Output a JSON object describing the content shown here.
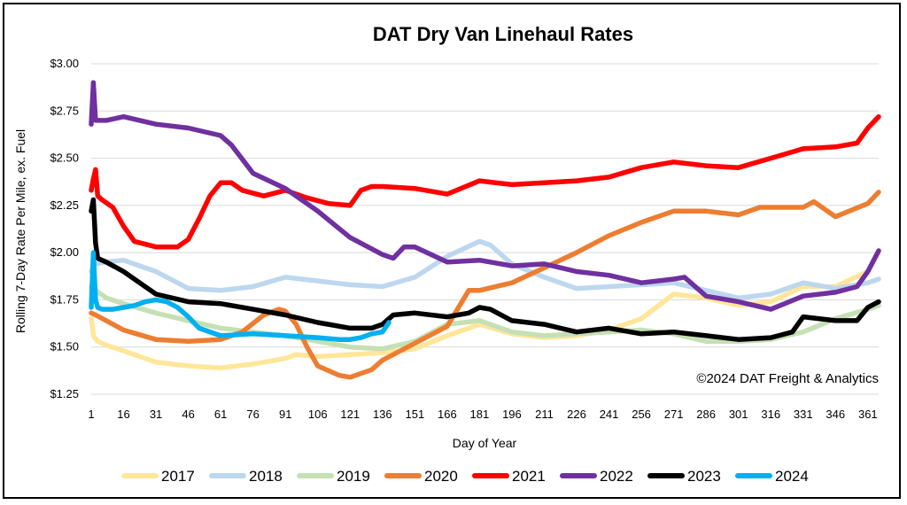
{
  "chart_data": {
    "type": "line",
    "title": "DAT Dry Van Linehaul Rates",
    "xlabel": "Day of Year",
    "ylabel": "Rolling 7-Day Rate Per Mile, ex. Fuel",
    "annotation": "©2024 DAT Freight & Analytics",
    "ylim": [
      1.25,
      3.0
    ],
    "xlim": [
      1,
      366
    ],
    "grid": "horizontal",
    "legend_position": "bottom",
    "y_ticks": [
      "$1.25",
      "$1.50",
      "$1.75",
      "$2.00",
      "$2.25",
      "$2.50",
      "$2.75",
      "$3.00"
    ],
    "y_tick_values": [
      1.25,
      1.5,
      1.75,
      2.0,
      2.25,
      2.5,
      2.75,
      3.0
    ],
    "x_ticks": [
      "1",
      "16",
      "31",
      "46",
      "61",
      "76",
      "91",
      "106",
      "121",
      "136",
      "151",
      "166",
      "181",
      "196",
      "211",
      "226",
      "241",
      "256",
      "271",
      "286",
      "301",
      "316",
      "331",
      "346",
      "361"
    ],
    "x_tick_values": [
      1,
      16,
      31,
      46,
      61,
      76,
      91,
      106,
      121,
      136,
      151,
      166,
      181,
      196,
      211,
      226,
      241,
      256,
      271,
      286,
      301,
      316,
      331,
      346,
      361
    ],
    "series": [
      {
        "name": "2017",
        "color": "#ffe699",
        "x": [
          1,
          2,
          4,
          8,
          16,
          31,
          46,
          61,
          76,
          91,
          96,
          106,
          121,
          136,
          151,
          166,
          181,
          196,
          211,
          226,
          241,
          256,
          271,
          286,
          301,
          316,
          331,
          346,
          361,
          366
        ],
        "y": [
          1.65,
          1.56,
          1.53,
          1.51,
          1.48,
          1.42,
          1.4,
          1.39,
          1.41,
          1.44,
          1.46,
          1.45,
          1.46,
          1.47,
          1.49,
          1.56,
          1.62,
          1.57,
          1.55,
          1.56,
          1.59,
          1.65,
          1.78,
          1.76,
          1.72,
          1.74,
          1.82,
          1.82,
          1.9,
          2.0
        ]
      },
      {
        "name": "2018",
        "color": "#bdd7ee",
        "x": [
          1,
          3,
          8,
          16,
          31,
          46,
          61,
          76,
          91,
          106,
          121,
          136,
          151,
          166,
          181,
          186,
          196,
          211,
          226,
          241,
          256,
          271,
          286,
          301,
          316,
          331,
          346,
          361,
          366
        ],
        "y": [
          1.9,
          1.94,
          1.95,
          1.96,
          1.9,
          1.81,
          1.8,
          1.82,
          1.87,
          1.85,
          1.83,
          1.82,
          1.87,
          1.98,
          2.06,
          2.04,
          1.94,
          1.87,
          1.81,
          1.82,
          1.83,
          1.84,
          1.8,
          1.76,
          1.78,
          1.84,
          1.81,
          1.84,
          1.86
        ]
      },
      {
        "name": "2019",
        "color": "#c5e0b4",
        "x": [
          1,
          3,
          8,
          16,
          31,
          46,
          61,
          76,
          91,
          106,
          121,
          136,
          151,
          166,
          181,
          196,
          211,
          226,
          241,
          256,
          271,
          286,
          301,
          316,
          331,
          346,
          361,
          366
        ],
        "y": [
          1.82,
          1.8,
          1.76,
          1.73,
          1.68,
          1.64,
          1.6,
          1.58,
          1.56,
          1.53,
          1.5,
          1.49,
          1.53,
          1.62,
          1.64,
          1.58,
          1.56,
          1.57,
          1.58,
          1.59,
          1.57,
          1.53,
          1.53,
          1.54,
          1.58,
          1.65,
          1.7,
          1.72
        ]
      },
      {
        "name": "2020",
        "color": "#ed7d31",
        "x": [
          1,
          3,
          8,
          16,
          31,
          46,
          61,
          71,
          81,
          88,
          91,
          96,
          101,
          106,
          116,
          121,
          131,
          136,
          151,
          166,
          176,
          181,
          196,
          211,
          226,
          241,
          256,
          271,
          286,
          301,
          311,
          316,
          331,
          336,
          346,
          361,
          366
        ],
        "y": [
          1.68,
          1.67,
          1.64,
          1.59,
          1.54,
          1.53,
          1.54,
          1.58,
          1.67,
          1.7,
          1.69,
          1.62,
          1.5,
          1.4,
          1.35,
          1.34,
          1.38,
          1.43,
          1.52,
          1.61,
          1.8,
          1.8,
          1.84,
          1.92,
          2.0,
          2.09,
          2.16,
          2.22,
          2.22,
          2.2,
          2.24,
          2.24,
          2.24,
          2.27,
          2.19,
          2.26,
          2.32
        ]
      },
      {
        "name": "2021",
        "color": "#ff0000",
        "x": [
          1,
          2,
          3,
          4,
          6,
          11,
          16,
          21,
          31,
          41,
          46,
          51,
          56,
          61,
          66,
          71,
          81,
          91,
          101,
          111,
          121,
          126,
          131,
          136,
          151,
          166,
          181,
          196,
          211,
          226,
          241,
          256,
          271,
          286,
          301,
          316,
          331,
          346,
          356,
          361,
          366
        ],
        "y": [
          2.33,
          2.39,
          2.44,
          2.3,
          2.28,
          2.24,
          2.14,
          2.06,
          2.03,
          2.03,
          2.07,
          2.18,
          2.3,
          2.37,
          2.37,
          2.33,
          2.3,
          2.33,
          2.29,
          2.26,
          2.25,
          2.33,
          2.35,
          2.35,
          2.34,
          2.31,
          2.38,
          2.36,
          2.37,
          2.38,
          2.4,
          2.45,
          2.48,
          2.46,
          2.45,
          2.5,
          2.55,
          2.56,
          2.58,
          2.66,
          2.72
        ]
      },
      {
        "name": "2022",
        "color": "#7030a0",
        "x": [
          1,
          2,
          3,
          4,
          8,
          16,
          31,
          46,
          61,
          66,
          76,
          91,
          106,
          121,
          136,
          141,
          146,
          151,
          166,
          181,
          196,
          211,
          226,
          241,
          256,
          271,
          276,
          286,
          301,
          316,
          331,
          346,
          356,
          361,
          366
        ],
        "y": [
          2.68,
          2.9,
          2.7,
          2.7,
          2.7,
          2.72,
          2.68,
          2.66,
          2.62,
          2.57,
          2.42,
          2.34,
          2.22,
          2.08,
          1.99,
          1.97,
          2.03,
          2.03,
          1.95,
          1.96,
          1.93,
          1.94,
          1.9,
          1.88,
          1.84,
          1.86,
          1.87,
          1.77,
          1.74,
          1.7,
          1.77,
          1.79,
          1.82,
          1.9,
          2.01
        ]
      },
      {
        "name": "2023",
        "color": "#000000",
        "x": [
          1,
          2,
          3,
          4,
          8,
          16,
          31,
          46,
          61,
          76,
          91,
          106,
          121,
          131,
          136,
          141,
          151,
          166,
          176,
          181,
          186,
          196,
          211,
          226,
          241,
          256,
          271,
          286,
          301,
          316,
          326,
          331,
          346,
          356,
          361,
          366
        ],
        "y": [
          2.22,
          2.28,
          2.05,
          1.97,
          1.95,
          1.9,
          1.78,
          1.74,
          1.73,
          1.7,
          1.67,
          1.63,
          1.6,
          1.6,
          1.62,
          1.67,
          1.68,
          1.66,
          1.68,
          1.71,
          1.7,
          1.64,
          1.62,
          1.58,
          1.6,
          1.57,
          1.58,
          1.56,
          1.54,
          1.55,
          1.58,
          1.66,
          1.64,
          1.64,
          1.71,
          1.74
        ]
      },
      {
        "name": "2024",
        "color": "#00b0f0",
        "x": [
          1,
          2,
          3,
          4,
          6,
          11,
          16,
          21,
          26,
          31,
          36,
          41,
          46,
          51,
          61,
          76,
          91,
          106,
          116,
          121,
          126,
          131,
          136,
          139
        ],
        "y": [
          1.71,
          2.0,
          1.75,
          1.71,
          1.7,
          1.7,
          1.71,
          1.72,
          1.74,
          1.75,
          1.74,
          1.71,
          1.66,
          1.6,
          1.56,
          1.57,
          1.56,
          1.55,
          1.54,
          1.54,
          1.55,
          1.57,
          1.58,
          1.63
        ]
      }
    ]
  }
}
